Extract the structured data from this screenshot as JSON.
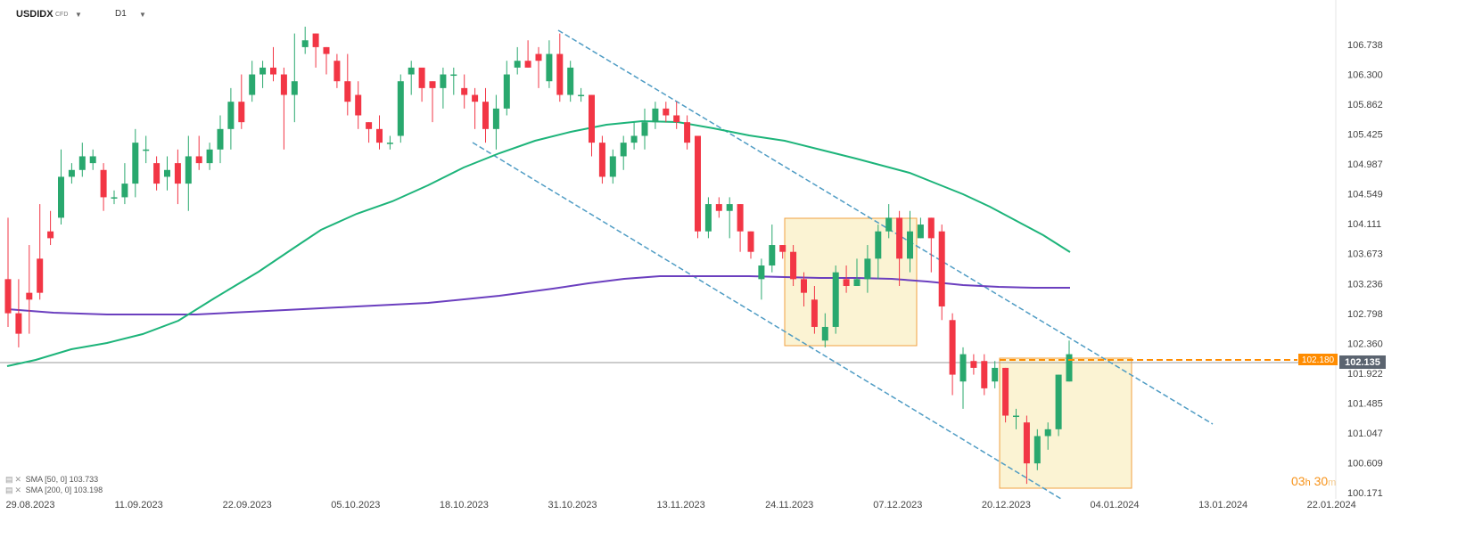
{
  "header": {
    "symbol": "USDIDX",
    "type": "CFD",
    "timeframe": "D1"
  },
  "legend": [
    {
      "label": "SMA [50, 0] 103.733",
      "color": "#1db47a"
    },
    {
      "label": "SMA [200, 0] 103.198",
      "color": "#6b3fbf"
    }
  ],
  "timer": {
    "hours": "03",
    "h": "h",
    "minutes": "30",
    "m": "m"
  },
  "price_tags": {
    "ask": "102.180",
    "bid": "102.135"
  },
  "colors": {
    "up": "#29a86e",
    "down": "#f23645",
    "sma50": "#1db47a",
    "sma200": "#6b3fbf",
    "trend": "#4f9cc4",
    "box": "#f0a040",
    "tag": "#ff8c00"
  },
  "chart_data": {
    "type": "candlestick",
    "ylim": [
      100.1,
      107.0
    ],
    "yticks": [
      "106.738",
      "106.300",
      "105.862",
      "105.425",
      "104.987",
      "104.549",
      "104.111",
      "103.673",
      "103.236",
      "102.798",
      "102.360",
      "101.922",
      "101.485",
      "101.047",
      "100.609",
      "100.171"
    ],
    "xticks": [
      "29.08.2023",
      "11.09.2023",
      "22.09.2023",
      "05.10.2023",
      "18.10.2023",
      "31.10.2023",
      "13.11.2023",
      "24.11.2023",
      "07.12.2023",
      "20.12.2023",
      "04.01.2024",
      "13.01.2024",
      "22.01.2024"
    ],
    "candles": [
      [
        103.3,
        102.8,
        104.2,
        102.6
      ],
      [
        102.8,
        102.5,
        103.3,
        102.3
      ],
      [
        103.1,
        103.0,
        103.8,
        102.5
      ],
      [
        103.6,
        103.1,
        104.4,
        103.0
      ],
      [
        104.0,
        103.9,
        104.3,
        103.8
      ],
      [
        104.2,
        104.8,
        105.2,
        104.1
      ],
      [
        104.8,
        104.9,
        105.0,
        104.7
      ],
      [
        104.9,
        105.1,
        105.3,
        104.8
      ],
      [
        105.0,
        105.1,
        105.2,
        104.9
      ],
      [
        104.9,
        104.5,
        105.0,
        104.3
      ],
      [
        104.5,
        104.5,
        104.6,
        104.4
      ],
      [
        104.5,
        104.7,
        105.0,
        104.4
      ],
      [
        104.7,
        105.3,
        105.5,
        104.5
      ],
      [
        105.2,
        105.2,
        105.4,
        105.0
      ],
      [
        105.0,
        104.7,
        105.1,
        104.6
      ],
      [
        104.8,
        104.9,
        105.1,
        104.6
      ],
      [
        105.0,
        104.7,
        105.2,
        104.4
      ],
      [
        104.7,
        105.1,
        105.4,
        104.3
      ],
      [
        105.1,
        105.0,
        105.4,
        104.9
      ],
      [
        105.0,
        105.2,
        105.3,
        104.9
      ],
      [
        105.2,
        105.5,
        105.7,
        105.0
      ],
      [
        105.5,
        105.9,
        106.1,
        105.2
      ],
      [
        105.9,
        105.6,
        106.3,
        105.5
      ],
      [
        106.0,
        106.3,
        106.5,
        105.9
      ],
      [
        106.3,
        106.4,
        106.5,
        106.1
      ],
      [
        106.4,
        106.3,
        106.7,
        106.2
      ],
      [
        106.3,
        106.0,
        106.4,
        105.2
      ],
      [
        106.0,
        106.2,
        106.9,
        105.6
      ],
      [
        106.7,
        106.8,
        107.0,
        106.6
      ],
      [
        106.9,
        106.7,
        106.9,
        106.4
      ],
      [
        106.7,
        106.6,
        106.7,
        106.3
      ],
      [
        106.5,
        106.2,
        106.6,
        106.1
      ],
      [
        106.2,
        105.9,
        106.6,
        105.7
      ],
      [
        106.0,
        105.7,
        106.2,
        105.5
      ],
      [
        105.6,
        105.5,
        105.6,
        105.3
      ],
      [
        105.5,
        105.3,
        105.7,
        105.2
      ],
      [
        105.3,
        105.3,
        105.4,
        105.2
      ],
      [
        105.4,
        106.2,
        106.3,
        105.3
      ],
      [
        106.3,
        106.4,
        106.5,
        106.0
      ],
      [
        106.4,
        106.1,
        106.3,
        105.9
      ],
      [
        106.2,
        106.1,
        106.2,
        105.6
      ],
      [
        106.1,
        106.3,
        106.4,
        105.8
      ],
      [
        106.3,
        106.3,
        106.4,
        106.0
      ],
      [
        106.1,
        106.0,
        106.3,
        105.8
      ],
      [
        106.0,
        105.9,
        106.1,
        105.5
      ],
      [
        105.9,
        105.5,
        106.1,
        105.3
      ],
      [
        105.5,
        105.8,
        106.0,
        105.2
      ],
      [
        105.8,
        106.3,
        106.5,
        105.7
      ],
      [
        106.4,
        106.5,
        106.7,
        106.3
      ],
      [
        106.5,
        106.4,
        106.8,
        106.4
      ],
      [
        106.6,
        106.5,
        106.7,
        106.1
      ],
      [
        106.2,
        106.6,
        106.8,
        106.1
      ],
      [
        106.6,
        106.0,
        106.9,
        105.9
      ],
      [
        106.0,
        106.4,
        106.5,
        105.9
      ],
      [
        106.0,
        106.0,
        106.1,
        105.9
      ],
      [
        106.0,
        105.3,
        106.0,
        105.1
      ],
      [
        105.3,
        104.8,
        105.4,
        104.7
      ],
      [
        104.8,
        105.1,
        105.2,
        104.7
      ],
      [
        105.1,
        105.3,
        105.4,
        104.9
      ],
      [
        105.3,
        105.4,
        105.6,
        105.2
      ],
      [
        105.4,
        105.6,
        105.8,
        105.2
      ],
      [
        105.6,
        105.8,
        105.9,
        105.5
      ],
      [
        105.8,
        105.7,
        105.9,
        105.6
      ],
      [
        105.7,
        105.6,
        105.9,
        105.5
      ],
      [
        105.6,
        105.3,
        105.7,
        105.2
      ],
      [
        105.4,
        104.0,
        105.4,
        103.9
      ],
      [
        104.0,
        104.4,
        104.5,
        103.9
      ],
      [
        104.4,
        104.3,
        104.5,
        104.2
      ],
      [
        104.3,
        104.4,
        104.5,
        103.9
      ],
      [
        104.4,
        104.0,
        104.4,
        103.7
      ],
      [
        104.0,
        103.7,
        104.0,
        103.6
      ],
      [
        103.3,
        103.5,
        103.6,
        103.0
      ],
      [
        103.5,
        103.8,
        104.1,
        103.4
      ],
      [
        103.8,
        103.7,
        103.8,
        103.6
      ],
      [
        103.7,
        103.3,
        103.8,
        103.2
      ],
      [
        103.3,
        103.1,
        103.4,
        102.9
      ],
      [
        103.0,
        102.6,
        103.2,
        102.5
      ],
      [
        102.4,
        102.6,
        102.8,
        102.3
      ],
      [
        102.6,
        103.4,
        103.5,
        102.5
      ],
      [
        103.3,
        103.2,
        103.5,
        103.1
      ],
      [
        103.2,
        103.3,
        103.6,
        103.2
      ],
      [
        103.3,
        103.6,
        103.8,
        103.1
      ],
      [
        103.6,
        104.0,
        104.1,
        103.3
      ],
      [
        104.0,
        104.2,
        104.4,
        103.9
      ],
      [
        104.2,
        103.6,
        104.3,
        103.2
      ],
      [
        103.6,
        104.0,
        104.3,
        103.4
      ],
      [
        103.9,
        104.1,
        104.2,
        103.9
      ],
      [
        104.2,
        103.9,
        104.2,
        103.4
      ],
      [
        104.0,
        102.9,
        104.1,
        102.7
      ],
      [
        102.7,
        101.9,
        102.8,
        101.6
      ],
      [
        101.8,
        102.2,
        102.3,
        101.4
      ],
      [
        102.1,
        102.0,
        102.2,
        101.9
      ],
      [
        102.1,
        101.7,
        102.2,
        101.6
      ],
      [
        101.8,
        102.0,
        102.1,
        101.7
      ],
      [
        102.0,
        101.3,
        102.0,
        101.2
      ],
      [
        101.3,
        101.3,
        101.4,
        101.1
      ],
      [
        101.2,
        100.6,
        101.3,
        100.3
      ],
      [
        100.6,
        101.0,
        101.1,
        100.5
      ],
      [
        101.0,
        101.1,
        101.2,
        100.8
      ],
      [
        101.1,
        101.9,
        101.9,
        101.0
      ],
      [
        101.8,
        102.2,
        102.4,
        101.8
      ]
    ],
    "sma50": [
      [
        8,
        411
      ],
      [
        40,
        404
      ],
      [
        80,
        392
      ],
      [
        120,
        385
      ],
      [
        160,
        375
      ],
      [
        200,
        360
      ],
      [
        240,
        335
      ],
      [
        290,
        305
      ],
      [
        330,
        278
      ],
      [
        360,
        258
      ],
      [
        400,
        240
      ],
      [
        440,
        226
      ],
      [
        480,
        208
      ],
      [
        520,
        188
      ],
      [
        560,
        172
      ],
      [
        600,
        158
      ],
      [
        640,
        148
      ],
      [
        680,
        140
      ],
      [
        720,
        136
      ],
      [
        760,
        137
      ],
      [
        800,
        144
      ],
      [
        840,
        152
      ],
      [
        880,
        158
      ],
      [
        920,
        168
      ],
      [
        960,
        178
      ],
      [
        990,
        186
      ],
      [
        1020,
        194
      ],
      [
        1050,
        206
      ],
      [
        1080,
        218
      ],
      [
        1110,
        232
      ],
      [
        1140,
        248
      ],
      [
        1170,
        264
      ],
      [
        1200,
        283
      ]
    ],
    "sma200": [
      [
        8,
        347
      ],
      [
        60,
        351
      ],
      [
        120,
        353
      ],
      [
        220,
        353
      ],
      [
        320,
        348
      ],
      [
        400,
        344
      ],
      [
        480,
        340
      ],
      [
        560,
        332
      ],
      [
        620,
        324
      ],
      [
        660,
        318
      ],
      [
        700,
        313
      ],
      [
        740,
        310
      ],
      [
        780,
        310
      ],
      [
        840,
        310
      ],
      [
        880,
        311
      ],
      [
        920,
        312
      ],
      [
        960,
        312
      ],
      [
        1000,
        313
      ],
      [
        1040,
        316
      ],
      [
        1080,
        320
      ],
      [
        1120,
        322
      ],
      [
        1160,
        323
      ],
      [
        1200,
        323
      ]
    ],
    "trend_lines": [
      [
        [
          626,
          34
        ],
        [
          1360,
          476
        ]
      ],
      [
        [
          530,
          160
        ],
        [
          1190,
          560
        ]
      ]
    ],
    "boxes": [
      [
        [
          880,
          245
        ],
        [
          1028,
          388
        ]
      ],
      [
        [
          1121,
          402
        ],
        [
          1269,
          548
        ]
      ]
    ]
  }
}
